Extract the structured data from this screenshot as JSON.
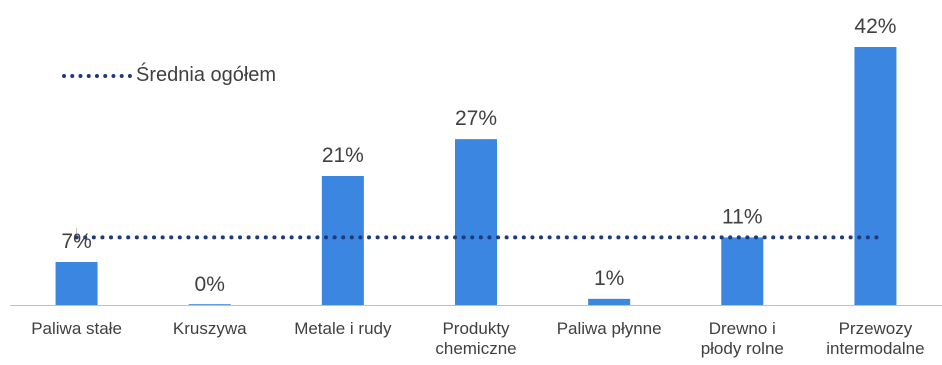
{
  "chart_data": {
    "type": "bar",
    "categories": [
      [
        "Paliwa stałe"
      ],
      [
        "Kruszywa"
      ],
      [
        "Metale i rudy"
      ],
      [
        "Produkty",
        "chemiczne"
      ],
      [
        "Paliwa płynne"
      ],
      [
        "Drewno i",
        "płody rolne"
      ],
      [
        "Przewozy",
        "intermodalne"
      ]
    ],
    "values": [
      7,
      0,
      21,
      27,
      1,
      11,
      42
    ],
    "data_labels": [
      "7%",
      "0%",
      "21%",
      "27%",
      "1%",
      "11%",
      "42%"
    ],
    "average": {
      "name": "Średnia ogółem",
      "value": 11
    },
    "ylim": [
      0,
      44
    ],
    "grid": false,
    "legend_position": "top-left",
    "colors": {
      "bar": "#3a86e0",
      "average_line": "#1f3a7a",
      "axis": "#bfbfbf",
      "text": "#404040"
    }
  }
}
